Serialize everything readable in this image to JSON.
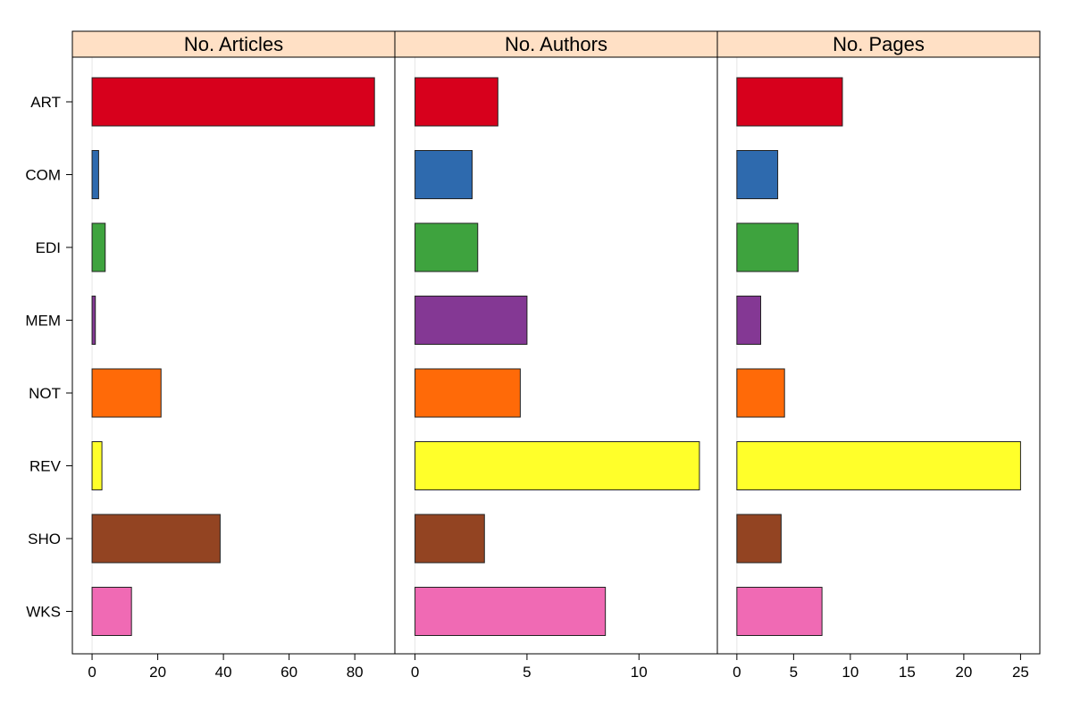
{
  "chart_data": {
    "type": "bar",
    "orientation": "horizontal",
    "layout": "small-multiples",
    "categories": [
      "ART",
      "COM",
      "EDI",
      "MEM",
      "NOT",
      "REV",
      "SHO",
      "WKS"
    ],
    "colors": [
      "#D7001C",
      "#2E6AAE",
      "#3EA33E",
      "#843894",
      "#FF6A08",
      "#FFFF2A",
      "#934422",
      "#F06AB4"
    ],
    "strip_color": "#FFE0C5",
    "grid": false,
    "legend": "none",
    "panels": [
      {
        "title": "No. Articles",
        "values": [
          86,
          2,
          4,
          1,
          21,
          3,
          39,
          12
        ],
        "xlim": [
          -6,
          92.2
        ],
        "ticks": [
          0,
          20,
          40,
          60,
          80
        ],
        "tick_labels": [
          "0",
          "20",
          "40",
          "60",
          "80"
        ]
      },
      {
        "title": "No. Authors",
        "values": [
          3.7,
          2.55,
          2.8,
          5.0,
          4.7,
          12.7,
          3.1,
          8.5
        ],
        "xlim": [
          -0.9,
          13.5
        ],
        "ticks": [
          0,
          5,
          10
        ],
        "tick_labels": [
          "0",
          "5",
          "10"
        ]
      },
      {
        "title": "No. Pages",
        "values": [
          9.3,
          3.6,
          5.4,
          2.1,
          4.2,
          25.0,
          3.9,
          7.5
        ],
        "xlim": [
          -1.72,
          26.7
        ],
        "ticks": [
          0,
          5,
          10,
          15,
          20,
          25
        ],
        "tick_labels": [
          "0",
          "5",
          "10",
          "15",
          "20",
          "25"
        ]
      }
    ]
  }
}
